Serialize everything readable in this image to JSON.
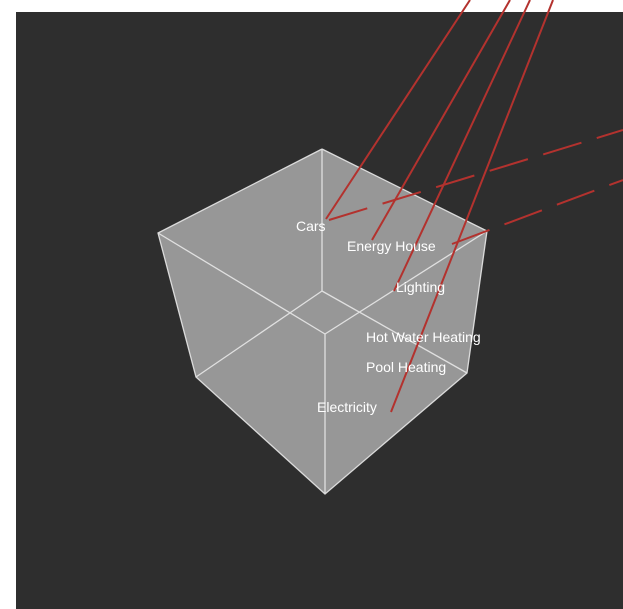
{
  "labels": {
    "cars": "Cars",
    "energy_house": "Energy House",
    "lighting": "Lighting",
    "hot_water_heating": "Hot Water Heating",
    "pool_heating": "Pool Heating",
    "electricity": "Electricity"
  },
  "colors": {
    "background": "#2e2e2e",
    "cube_face": "#969696",
    "cube_edge": "#e6e6e6",
    "connector": "#b3322e",
    "label_text": "#ffffff"
  }
}
